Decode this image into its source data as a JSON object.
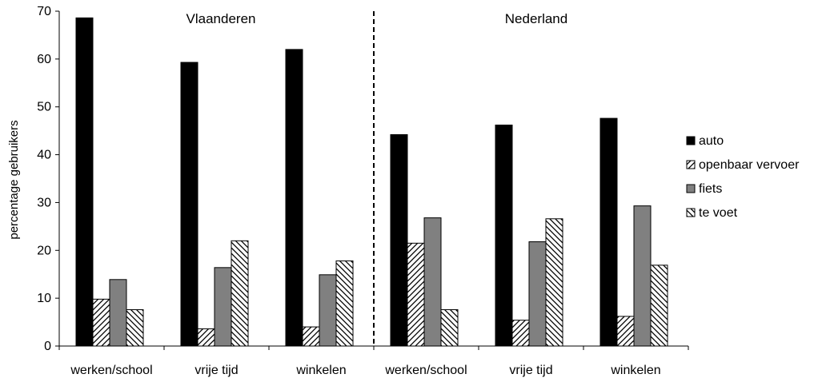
{
  "chart_data": {
    "type": "bar",
    "title": "",
    "xlabel": "",
    "ylabel": "percentage gebruikers",
    "ylim": [
      0,
      70
    ],
    "yticks": [
      0,
      10,
      20,
      30,
      40,
      50,
      60,
      70
    ],
    "grid": false,
    "legend_position": "right",
    "regions": [
      {
        "label": "Vlaanderen",
        "categories": [
          "werken/school",
          "vrije tijd",
          "winkelen"
        ]
      },
      {
        "label": "Nederland",
        "categories": [
          "werken/school",
          "vrije tijd",
          "winkelen"
        ]
      }
    ],
    "categories": [
      "werken/school",
      "vrije tijd",
      "winkelen",
      "werken/school",
      "vrije tijd",
      "winkelen"
    ],
    "series": [
      {
        "name": "auto",
        "fill": "solid-black",
        "values": [
          68.6,
          59.3,
          62.0,
          44.2,
          46.2,
          47.6
        ]
      },
      {
        "name": "openbaar vervoer",
        "fill": "hatch-forward",
        "values": [
          9.8,
          3.6,
          4.0,
          21.5,
          5.4,
          6.2
        ]
      },
      {
        "name": "fiets",
        "fill": "solid-gray",
        "values": [
          13.9,
          16.4,
          14.9,
          26.8,
          21.8,
          29.3
        ]
      },
      {
        "name": "te voet",
        "fill": "hatch-back",
        "values": [
          7.6,
          22.0,
          17.8,
          7.6,
          26.6,
          16.9
        ]
      }
    ]
  },
  "colors": {
    "auto": "#000000",
    "fiets": "#808080",
    "axis": "#000000",
    "separator": "#000000"
  }
}
